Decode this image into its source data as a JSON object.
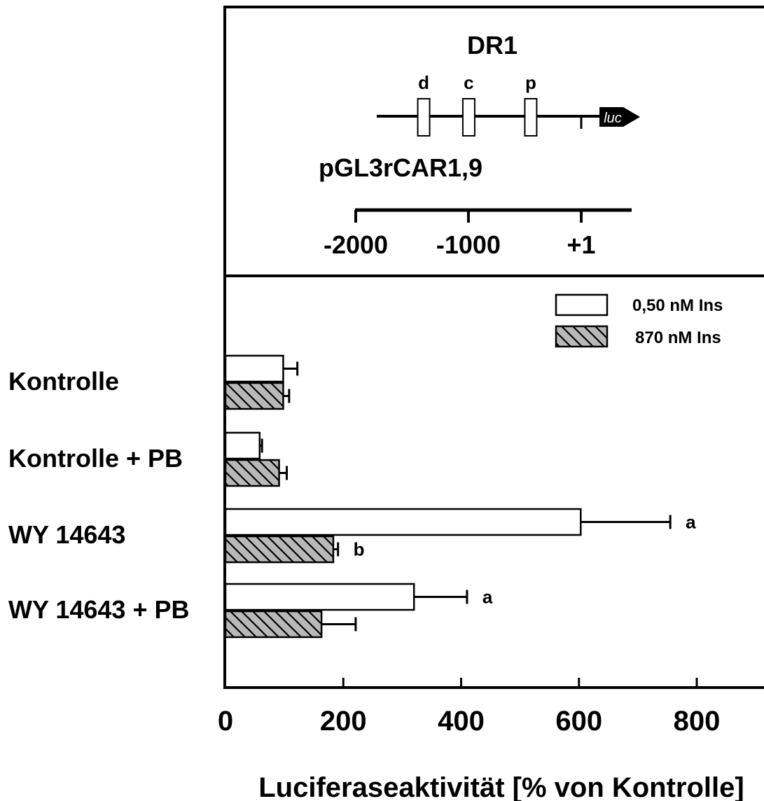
{
  "diagram": {
    "title": "DR1",
    "construct_label": "pGL3rCAR1,9",
    "sites": [
      {
        "label": "d",
        "position": -1400
      },
      {
        "label": "c",
        "position": -1000
      },
      {
        "label": "p",
        "position": -450
      }
    ],
    "reporter_label": "luc",
    "scale_ticks": [
      {
        "value": -2000,
        "label": "-2000"
      },
      {
        "value": -1000,
        "label": "-1000"
      },
      {
        "value": 1,
        "label": "+1"
      }
    ]
  },
  "chart_data": {
    "type": "bar",
    "orientation": "horizontal",
    "xlabel": "Luciferaseaktivität [% von Kontrolle]",
    "xlim": [
      0,
      900
    ],
    "xticks": [
      0,
      200,
      400,
      600,
      800
    ],
    "categories": [
      "Kontrolle",
      "Kontrolle + PB",
      "WY 14643",
      "WY 14643 + PB"
    ],
    "series": [
      {
        "name": "0,50 nM Ins",
        "fill": "#ffffff",
        "pattern": "none",
        "values": [
          98,
          58,
          603,
          320
        ],
        "errors": [
          24,
          4,
          152,
          90
        ],
        "annotations": [
          "",
          "",
          "a",
          "a"
        ]
      },
      {
        "name": "870 nM Ins",
        "fill": "#b8b8b8",
        "pattern": "diagonal-hatch",
        "values": [
          98,
          91,
          183,
          163
        ],
        "errors": [
          10,
          13,
          8,
          58
        ],
        "annotations": [
          "",
          "",
          "b",
          ""
        ]
      }
    ],
    "legend_position": "top-right",
    "grid": false
  }
}
